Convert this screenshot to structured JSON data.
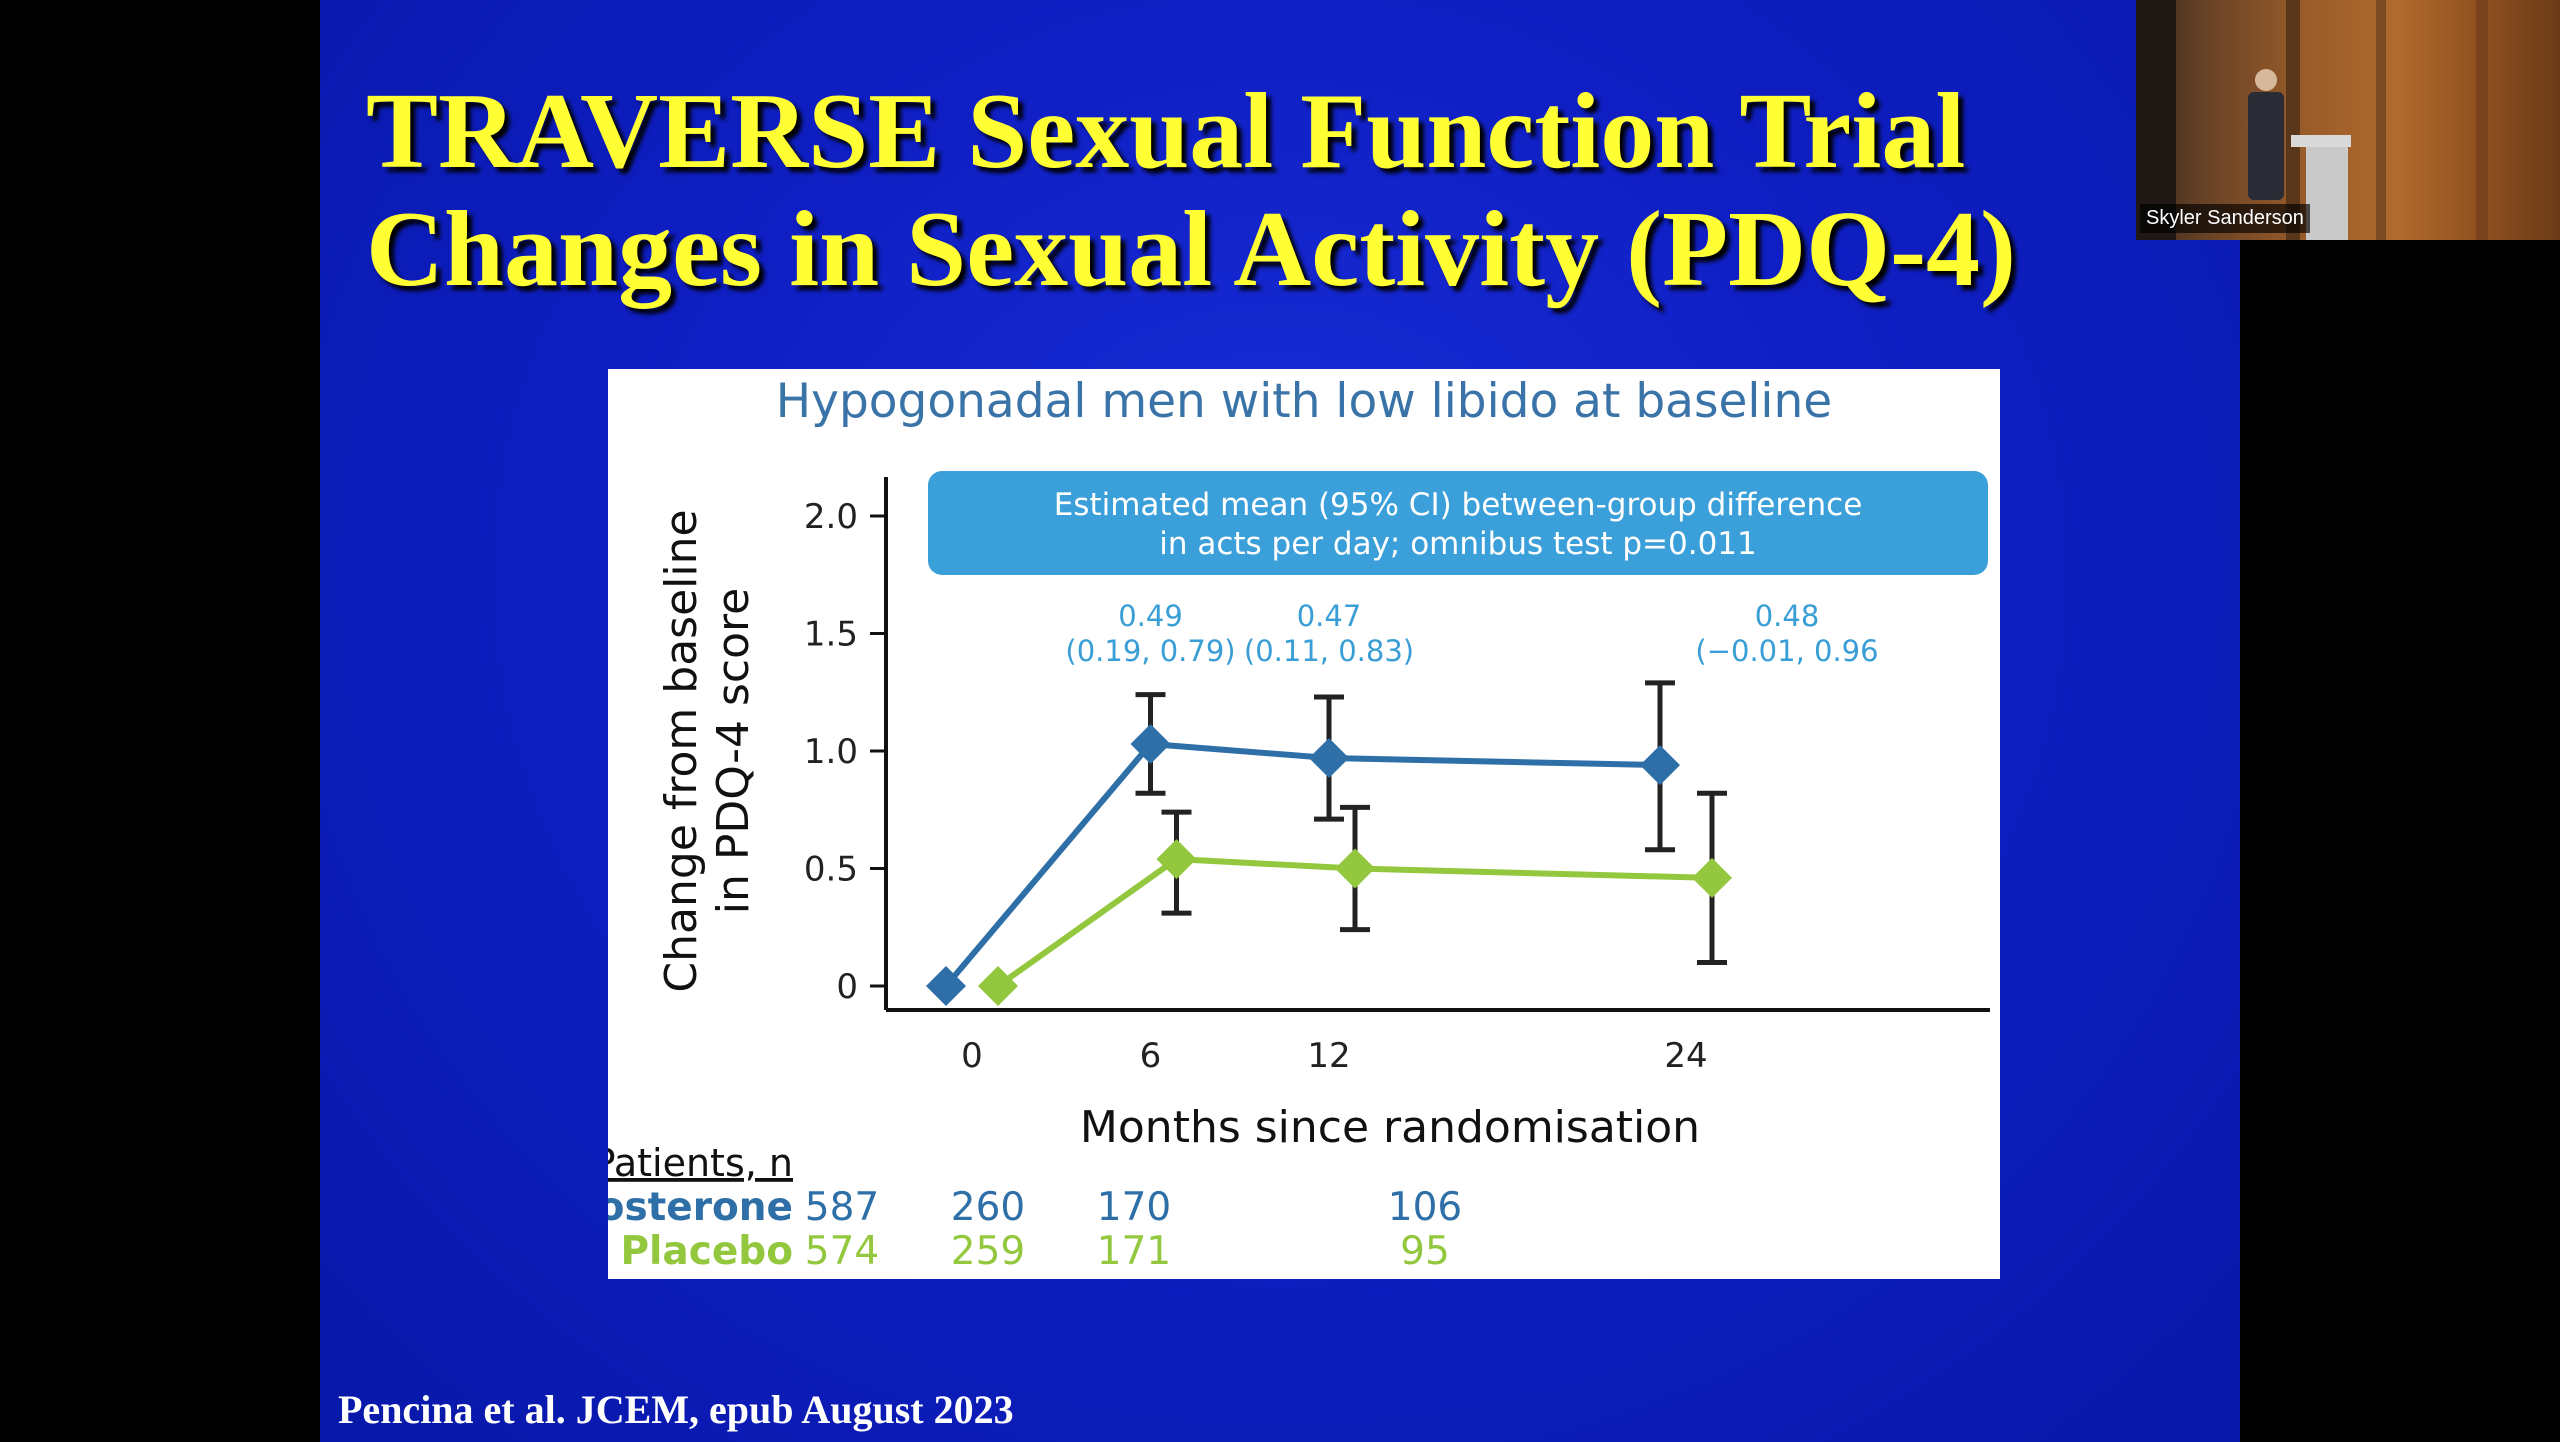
{
  "slide": {
    "title_line1": "TRAVERSE Sexual Function Trial",
    "title_line2": "Changes in Sexual Activity (PDQ-4)",
    "citation": "Pencina et al. JCEM, epub August 2023",
    "background_color": "#1428cc",
    "title_color": "#ffff33"
  },
  "video_tile": {
    "speaker_name": "Skyler Sanderson"
  },
  "chart_data": {
    "type": "line",
    "title": "Hypogonadal men with low libido at baseline",
    "xlabel": "Months since randomisation",
    "ylabel_line1": "Change from baseline",
    "ylabel_line2": "in PDQ-4 score",
    "x_ticks": [
      "0",
      "6",
      "12",
      "24"
    ],
    "y_ticks": [
      "0",
      "0.5",
      "1.0",
      "1.5",
      "2.0"
    ],
    "ylim": [
      -0.12,
      2.18
    ],
    "xlim": [
      -2.6,
      25.5
    ],
    "annotation_box_line1": "Estimated mean (95% CI) between-group difference",
    "annotation_box_line2": "in acts per day; omnibus test p=0.011",
    "differences": [
      {
        "x": 6,
        "estimate": "0.49",
        "ci": "(0.19, 0.79)"
      },
      {
        "x": 12,
        "estimate": "0.47",
        "ci": "(0.11, 0.83)"
      },
      {
        "x": 24,
        "estimate": "0.48",
        "ci": "(−0.01, 0.96"
      }
    ],
    "series": [
      {
        "name": "Testosterone",
        "color": "#2e6fa7",
        "x": [
          0,
          6,
          12,
          24
        ],
        "y": [
          0,
          1.03,
          0.97,
          0.94
        ],
        "ci_low": [
          null,
          0.82,
          0.71,
          0.58
        ],
        "ci_high": [
          null,
          1.24,
          1.23,
          1.29
        ],
        "x_offset": [
          -0.35,
          0,
          0,
          -0.35
        ]
      },
      {
        "name": "Placebo",
        "color": "#93c83e",
        "x": [
          0,
          6,
          12,
          24
        ],
        "y": [
          0,
          0.54,
          0.5,
          0.46
        ],
        "ci_low": [
          null,
          0.31,
          0.24,
          0.1
        ],
        "ci_high": [
          null,
          0.74,
          0.76,
          0.82
        ],
        "x_offset": [
          0.35,
          0.35,
          0.35,
          0.35
        ]
      }
    ],
    "patients_header": "Patients, n",
    "patients": [
      {
        "label": "Testosterone",
        "color": "#2e6fa7",
        "counts": [
          "587",
          "260",
          "170",
          "106"
        ]
      },
      {
        "label": "Placebo",
        "color": "#93c83e",
        "counts": [
          "574",
          "259",
          "171",
          "95"
        ]
      }
    ]
  }
}
